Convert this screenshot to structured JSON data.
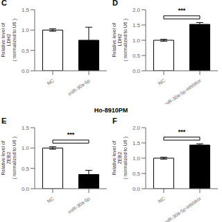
{
  "title": "Ho-8910PM",
  "chart_data": [
    {
      "type": "bar",
      "title": "C",
      "categories": [
        "NC",
        "miR-30a-5p"
      ],
      "values": [
        1.0,
        0.75
      ],
      "errors": [
        0.03,
        0.32
      ],
      "colors": [
        "white",
        "black"
      ],
      "ylabel": "Relative level of\nLDH2\n( normalized to U6 )",
      "ylim": [
        0,
        1.5
      ],
      "yticks": [
        {
          "value": 0,
          "label": "0.0"
        },
        {
          "value": 0.5,
          "label": "0.5"
        },
        {
          "value": 1,
          "label": "1.0"
        },
        {
          "value": 1.5,
          "label": "1.5"
        }
      ]
    },
    {
      "type": "bar",
      "title": "D",
      "categories": [
        "NC",
        "miR-30a-5p-inhibitor"
      ],
      "values": [
        1.0,
        1.52
      ],
      "errors": [
        0.03,
        0.06
      ],
      "colors": [
        "white",
        "black"
      ],
      "ylabel": "Relative level of\nLDH2\n( normalized to U6 )",
      "ylim": [
        0,
        2.0
      ],
      "yticks": [
        {
          "value": 0,
          "label": "0.0"
        },
        {
          "value": 0.5,
          "label": "0.5"
        },
        {
          "value": 1,
          "label": "1.0"
        },
        {
          "value": 1.5,
          "label": "1.5"
        },
        {
          "value": 2,
          "label": "2.0"
        }
      ],
      "annotation": "***"
    },
    {
      "type": "bar",
      "title": "E",
      "categories": [
        "NC",
        "miR-30a-5p"
      ],
      "values": [
        1.0,
        0.35
      ],
      "errors": [
        0.03,
        0.1
      ],
      "colors": [
        "white",
        "black"
      ],
      "ylabel": "Relative level of\nZEB2\n( normalized to U6 )",
      "ylim": [
        0,
        1.5
      ],
      "yticks": [
        {
          "value": 0,
          "label": "0.0"
        },
        {
          "value": 0.5,
          "label": "0.5"
        },
        {
          "value": 1,
          "label": "1.0"
        },
        {
          "value": 1.5,
          "label": "1.5"
        }
      ],
      "annotation": "***"
    },
    {
      "type": "bar",
      "title": "F",
      "categories": [
        "NC",
        "miR-30a-5p-inhibitor"
      ],
      "values": [
        1.0,
        1.43
      ],
      "errors": [
        0.03,
        0.04
      ],
      "colors": [
        "white",
        "black"
      ],
      "ylabel": "Relative level of\nZEB2\n( normalized to U6 )",
      "ylim": [
        0,
        2.0
      ],
      "yticks": [
        {
          "value": 0,
          "label": "0.0"
        },
        {
          "value": 0.5,
          "label": "0.5"
        },
        {
          "value": 1,
          "label": "1.0"
        },
        {
          "value": 1.5,
          "label": "1.5"
        },
        {
          "value": 2,
          "label": "2.0"
        }
      ],
      "annotation": "***"
    }
  ]
}
